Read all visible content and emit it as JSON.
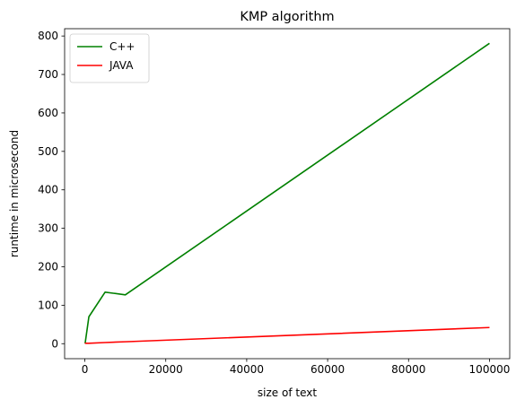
{
  "chart_data": {
    "type": "line",
    "title": "KMP algorithm",
    "xlabel": "size of text",
    "ylabel": "runtime in microsecond",
    "xlim": [
      -5000,
      105000
    ],
    "ylim": [
      -39,
      819
    ],
    "xticks": [
      0,
      20000,
      40000,
      60000,
      80000,
      100000
    ],
    "yticks": [
      0,
      100,
      200,
      300,
      400,
      500,
      600,
      700,
      800
    ],
    "grid": false,
    "legend": "top-left",
    "series": [
      {
        "name": "C++",
        "color": "#008000",
        "x": [
          10,
          100,
          1000,
          5000,
          10000,
          100000
        ],
        "y": [
          1,
          3,
          70,
          134,
          127,
          781
        ]
      },
      {
        "name": "JAVA",
        "color": "#ff0000",
        "x": [
          10,
          100,
          1000,
          5000,
          10000,
          100000
        ],
        "y": [
          1,
          1,
          1,
          3,
          5,
          42
        ]
      }
    ]
  }
}
